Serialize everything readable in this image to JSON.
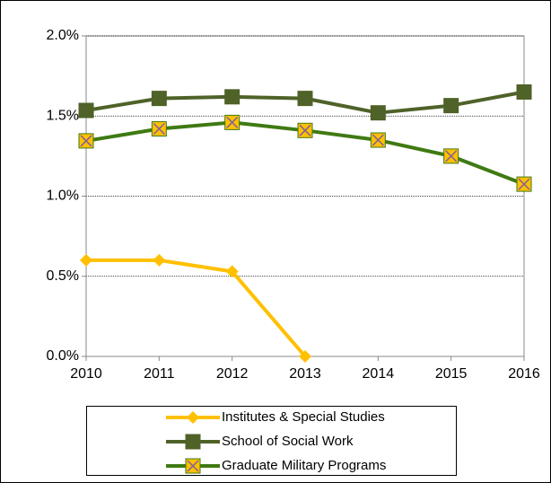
{
  "chart_data": {
    "type": "line",
    "categories": [
      "2010",
      "2011",
      "2012",
      "2013",
      "2014",
      "2015",
      "2016"
    ],
    "series": [
      {
        "name": "Institutes & Special Studies",
        "color": "#ffc000",
        "marker": "diamond",
        "marker_color": "#ffc000",
        "values": [
          0.6,
          0.6,
          0.53,
          0.0,
          null,
          null,
          null
        ]
      },
      {
        "name": "School of Social Work",
        "color": "#4f6228",
        "marker": "square",
        "marker_color": "#4f6228",
        "values": [
          1.535,
          1.61,
          1.62,
          1.61,
          1.52,
          1.565,
          1.65
        ]
      },
      {
        "name": "Graduate Military Programs",
        "color": "#3f7a12",
        "marker": "cross-square",
        "marker_color": "#ffc000",
        "values": [
          1.345,
          1.42,
          1.46,
          1.41,
          1.35,
          1.25,
          1.075
        ]
      }
    ],
    "ylim": [
      0,
      2
    ],
    "yticks": [
      {
        "value": 0,
        "label": "0.0%"
      },
      {
        "value": 0.5,
        "label": "0.5%"
      },
      {
        "value": 1,
        "label": "1.0%"
      },
      {
        "value": 1.5,
        "label": "1.5%"
      },
      {
        "value": 2,
        "label": "2.0%"
      }
    ],
    "grid": true,
    "legend": "bottom"
  }
}
